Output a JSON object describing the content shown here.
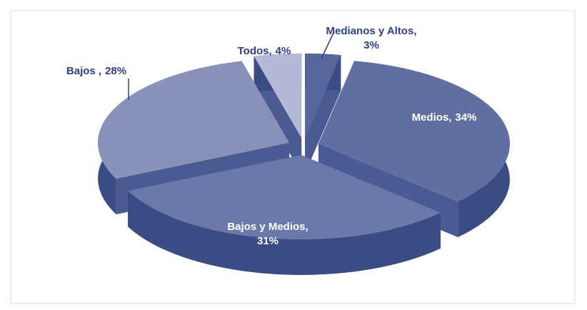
{
  "chart_data": {
    "type": "pie3d",
    "categories": [
      "Medianos y Altos,",
      "Medios,",
      "Bajos y Medios,",
      "Bajos ,",
      "Todos,"
    ],
    "values": [
      3,
      34,
      31,
      28,
      4
    ],
    "value_labels": [
      "3%",
      "34%",
      "31%",
      "28%",
      "4%"
    ],
    "colors": [
      "#56669c",
      "#606ea2",
      "#6a78aa",
      "#8a91b9",
      "#b4b9d5"
    ]
  }
}
